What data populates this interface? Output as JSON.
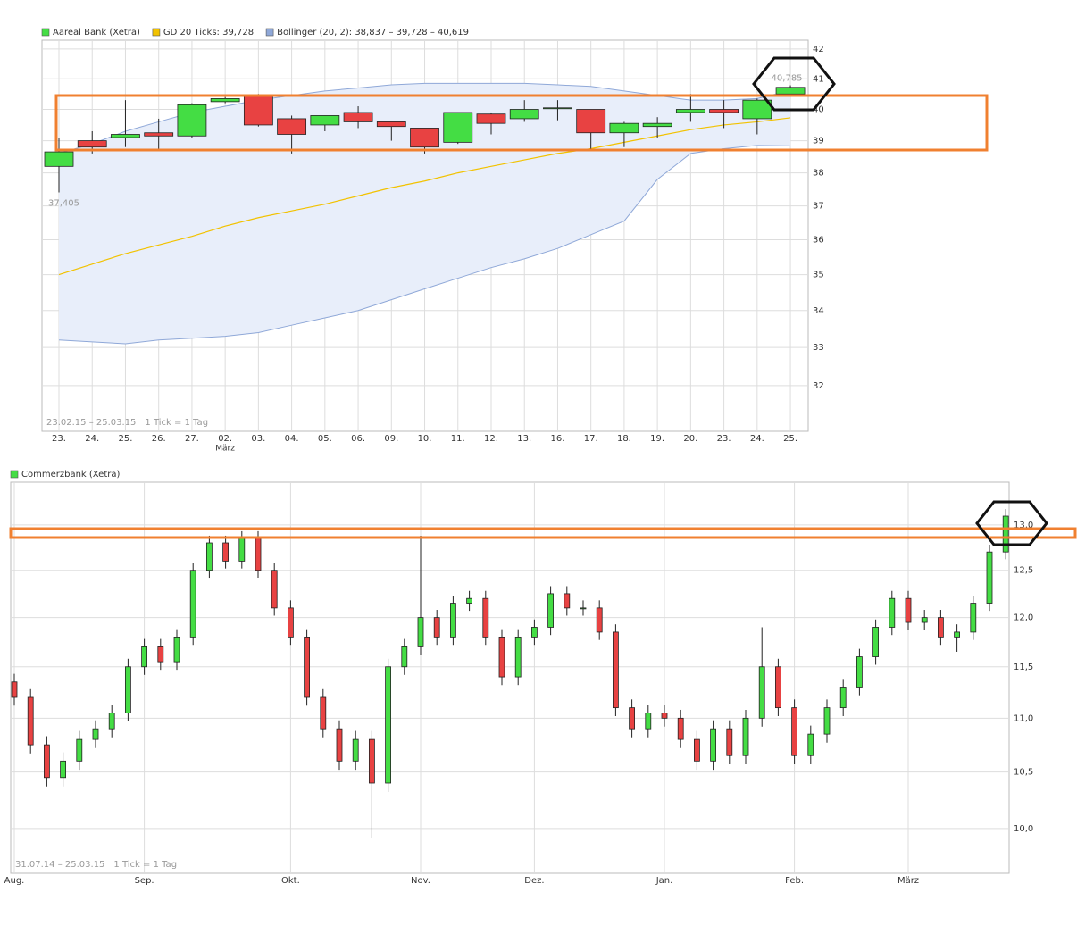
{
  "chart_data": [
    {
      "type": "candlestick",
      "name": "Aareal Bank (Xetra)",
      "color": "#44dd44",
      "up_color": "#44dd44",
      "down_color": "#e84242",
      "log": true,
      "grid": true,
      "categories": [
        "23.",
        "24.",
        "25.",
        "26.",
        "27.",
        "02.",
        "03.",
        "04.",
        "05.",
        "06.",
        "09.",
        "10.",
        "11.",
        "12.",
        "13.",
        "16.",
        "17.",
        "18.",
        "19.",
        "20.",
        "23.",
        "24.",
        "25."
      ],
      "subcategories": [
        null,
        null,
        null,
        null,
        null,
        "März",
        null,
        null,
        null,
        null,
        null,
        null,
        null,
        null,
        null,
        null,
        null,
        null,
        null,
        null,
        null,
        null,
        null
      ],
      "open": [
        38.2,
        39.0,
        39.1,
        39.25,
        39.15,
        40.25,
        40.45,
        39.7,
        39.5,
        39.9,
        39.6,
        39.4,
        38.95,
        39.85,
        39.7,
        40.05,
        40.0,
        39.25,
        39.45,
        39.9,
        40.0,
        39.7,
        40.5
      ],
      "high": [
        39.1,
        39.3,
        40.3,
        39.7,
        40.2,
        40.4,
        40.5,
        39.8,
        39.8,
        40.1,
        39.6,
        39.4,
        39.9,
        39.9,
        40.3,
        40.3,
        40.0,
        39.6,
        39.75,
        40.5,
        40.3,
        40.35,
        40.785
      ],
      "low": [
        37.405,
        38.6,
        38.8,
        38.7,
        39.1,
        40.2,
        39.45,
        38.6,
        39.3,
        39.4,
        39.0,
        38.6,
        38.9,
        39.2,
        39.6,
        39.65,
        38.7,
        38.8,
        39.1,
        39.6,
        39.4,
        39.2,
        40.45
      ],
      "close": [
        38.65,
        38.8,
        39.2,
        39.15,
        40.15,
        40.35,
        39.5,
        39.2,
        39.8,
        39.6,
        39.45,
        38.8,
        39.9,
        39.55,
        40.0,
        40.05,
        39.25,
        39.55,
        39.55,
        40.0,
        39.9,
        40.3,
        40.72
      ],
      "low_labels": [
        "37,405",
        null,
        null,
        null,
        null,
        null,
        null,
        null,
        null,
        null,
        null,
        null,
        null,
        null,
        null,
        null,
        null,
        null,
        null,
        null,
        null,
        null,
        null
      ],
      "high_labels": [
        null,
        null,
        null,
        null,
        null,
        null,
        null,
        null,
        null,
        null,
        null,
        null,
        null,
        null,
        null,
        null,
        null,
        null,
        null,
        null,
        null,
        null,
        "40,785"
      ],
      "series": [
        {
          "name": "GD 20 Ticks: 39,728",
          "color": "#f2c200",
          "values": [
            35.0,
            35.3,
            35.6,
            35.85,
            36.1,
            36.4,
            36.65,
            36.85,
            37.05,
            37.3,
            37.55,
            37.75,
            38.0,
            38.2,
            38.4,
            38.6,
            38.75,
            38.95,
            39.15,
            39.35,
            39.5,
            39.6,
            39.728
          ]
        },
        {
          "name": "Bollinger (20, 2): 38,837 – 39,728 – 40,619",
          "color": "#8fa8d8",
          "fill": "#e8eefa",
          "upper": [
            38.6,
            38.9,
            39.3,
            39.6,
            39.9,
            40.1,
            40.3,
            40.45,
            40.6,
            40.7,
            40.8,
            40.85,
            40.85,
            40.85,
            40.85,
            40.8,
            40.75,
            40.6,
            40.45,
            40.3,
            40.3,
            40.35,
            40.619
          ],
          "lower": [
            33.2,
            33.15,
            33.1,
            33.2,
            33.25,
            33.3,
            33.4,
            33.6,
            33.8,
            34.0,
            34.3,
            34.6,
            34.9,
            35.2,
            35.45,
            35.75,
            36.15,
            36.55,
            37.8,
            38.6,
            38.75,
            38.85,
            38.837
          ]
        }
      ],
      "ylim": [
        30.84,
        42.3
      ],
      "yticks": [
        32,
        33,
        34,
        35,
        36,
        37,
        38,
        39,
        40,
        41,
        42
      ],
      "range": "23.02.15 – 25.03.15",
      "tick_note": "1 Tick = 1 Tag"
    },
    {
      "type": "candlestick",
      "name": "Commerzbank (Xetra)",
      "color": "#44dd44",
      "up_color": "#44dd44",
      "down_color": "#e84242",
      "log": true,
      "grid": true,
      "categories": [
        "Aug.",
        null,
        null,
        null,
        null,
        null,
        null,
        null,
        "Sep.",
        null,
        null,
        null,
        null,
        null,
        null,
        null,
        null,
        "Okt.",
        null,
        null,
        null,
        null,
        null,
        null,
        null,
        "Nov.",
        null,
        null,
        null,
        null,
        null,
        null,
        "Dez.",
        null,
        null,
        null,
        null,
        null,
        null,
        null,
        "Jan.",
        null,
        null,
        null,
        null,
        null,
        null,
        null,
        "Feb.",
        null,
        null,
        null,
        null,
        null,
        null,
        "März",
        null,
        null,
        null,
        null,
        null,
        null
      ],
      "open": [
        11.35,
        11.2,
        10.75,
        10.45,
        10.6,
        10.8,
        10.9,
        11.05,
        11.5,
        11.7,
        11.55,
        11.8,
        12.5,
        12.8,
        12.6,
        12.85,
        12.5,
        12.1,
        11.8,
        11.2,
        10.9,
        10.6,
        10.8,
        10.4,
        11.5,
        11.7,
        12.0,
        11.8,
        12.15,
        12.2,
        11.8,
        11.4,
        11.8,
        11.9,
        12.25,
        12.1,
        12.1,
        11.85,
        11.1,
        10.9,
        11.05,
        11.0,
        10.8,
        10.6,
        10.9,
        10.65,
        11.0,
        11.5,
        11.1,
        10.65,
        10.85,
        11.1,
        11.3,
        11.6,
        11.9,
        12.2,
        11.95,
        12.0,
        11.8,
        11.85,
        12.15,
        12.7
      ],
      "high": [
        11.43,
        11.28,
        10.83,
        10.68,
        10.88,
        10.98,
        11.13,
        11.58,
        11.78,
        11.78,
        11.88,
        12.58,
        12.88,
        12.88,
        12.93,
        12.93,
        12.58,
        12.18,
        11.88,
        11.28,
        10.98,
        10.88,
        10.88,
        11.58,
        11.78,
        12.88,
        12.08,
        12.23,
        12.28,
        12.28,
        11.88,
        11.88,
        11.98,
        12.33,
        12.33,
        12.18,
        12.18,
        11.93,
        11.18,
        11.13,
        11.13,
        11.08,
        10.88,
        10.98,
        10.98,
        11.08,
        11.9,
        11.58,
        11.18,
        10.93,
        11.18,
        11.38,
        11.68,
        11.98,
        12.28,
        12.28,
        12.08,
        12.08,
        11.93,
        12.23,
        12.78,
        13.18
      ],
      "low": [
        11.12,
        10.67,
        10.37,
        10.37,
        10.52,
        10.72,
        10.82,
        10.97,
        11.42,
        11.47,
        11.47,
        11.72,
        12.42,
        12.52,
        12.52,
        12.42,
        12.02,
        11.72,
        11.12,
        10.82,
        10.52,
        10.52,
        9.92,
        10.32,
        11.42,
        11.62,
        11.72,
        11.72,
        12.07,
        11.72,
        11.32,
        11.32,
        11.72,
        11.82,
        12.02,
        12.02,
        11.77,
        11.02,
        10.82,
        10.82,
        10.92,
        10.72,
        10.52,
        10.52,
        10.57,
        10.57,
        10.92,
        11.02,
        10.57,
        10.57,
        10.77,
        11.02,
        11.22,
        11.52,
        11.82,
        11.87,
        11.87,
        11.72,
        11.65,
        11.77,
        12.07,
        12.62
      ],
      "close": [
        11.2,
        10.75,
        10.45,
        10.6,
        10.8,
        10.9,
        11.05,
        11.5,
        11.7,
        11.55,
        11.8,
        12.5,
        12.8,
        12.6,
        12.85,
        12.5,
        12.1,
        11.8,
        11.2,
        10.9,
        10.6,
        10.8,
        10.4,
        11.5,
        11.7,
        12.0,
        11.8,
        12.15,
        12.2,
        11.8,
        11.4,
        11.8,
        11.9,
        12.25,
        12.1,
        12.1,
        11.85,
        11.1,
        10.9,
        11.05,
        11.0,
        10.8,
        10.6,
        10.9,
        10.65,
        11.0,
        11.5,
        11.1,
        10.65,
        10.85,
        11.1,
        11.3,
        11.6,
        11.9,
        12.2,
        11.95,
        12.0,
        11.8,
        11.85,
        12.15,
        12.7,
        13.1
      ],
      "ylim": [
        9.62,
        13.49
      ],
      "yticks": [
        {
          "value": 10,
          "label": "10,0"
        },
        {
          "value": 10.5,
          "label": "10,5"
        },
        {
          "value": 11,
          "label": "11,0"
        },
        {
          "value": 11.5,
          "label": "11,5"
        },
        {
          "value": 12,
          "label": "12,0"
        },
        {
          "value": 12.5,
          "label": "12,5"
        },
        {
          "value": 13,
          "label": "13,0"
        }
      ],
      "range": "31.07.14 – 25.03.15",
      "tick_note": "1 Tick = 1 Tag"
    }
  ]
}
